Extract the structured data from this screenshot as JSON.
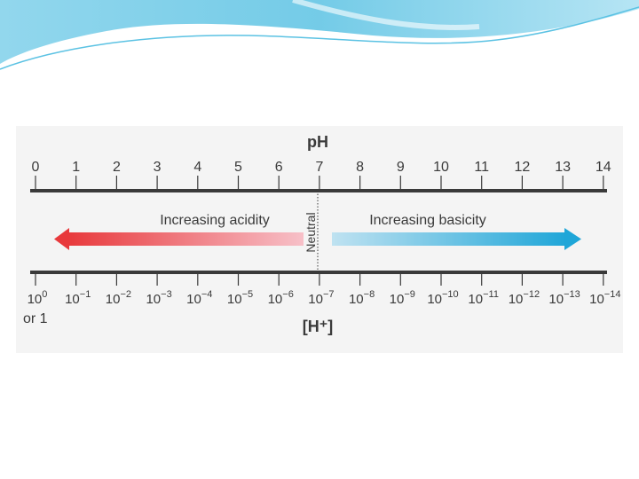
{
  "ph_scale": {
    "title": "pH",
    "ph_values": [
      "0",
      "1",
      "2",
      "3",
      "4",
      "5",
      "6",
      "7",
      "8",
      "9",
      "10",
      "11",
      "12",
      "13",
      "14"
    ],
    "neutral_label": "Neutral",
    "acidity_label": "Increasing acidity",
    "basicity_label": "Increasing basicity",
    "h_ion_base": "10",
    "h_ion_exponents": [
      "0",
      "−1",
      "−2",
      "−3",
      "−4",
      "−5",
      "−6",
      "−7",
      "−8",
      "−9",
      "−10",
      "−11",
      "−12",
      "−13",
      "−14"
    ],
    "or_one_label": "or 1",
    "h_ion_title": "[H⁺]",
    "colors": {
      "acid_start": "#e8393c",
      "acid_end": "#f7c0c8",
      "base_start": "#bfe2f1",
      "base_end": "#1fa6d8",
      "axis": "#3a3a3a",
      "header_wave": "#5bc2e3"
    }
  }
}
